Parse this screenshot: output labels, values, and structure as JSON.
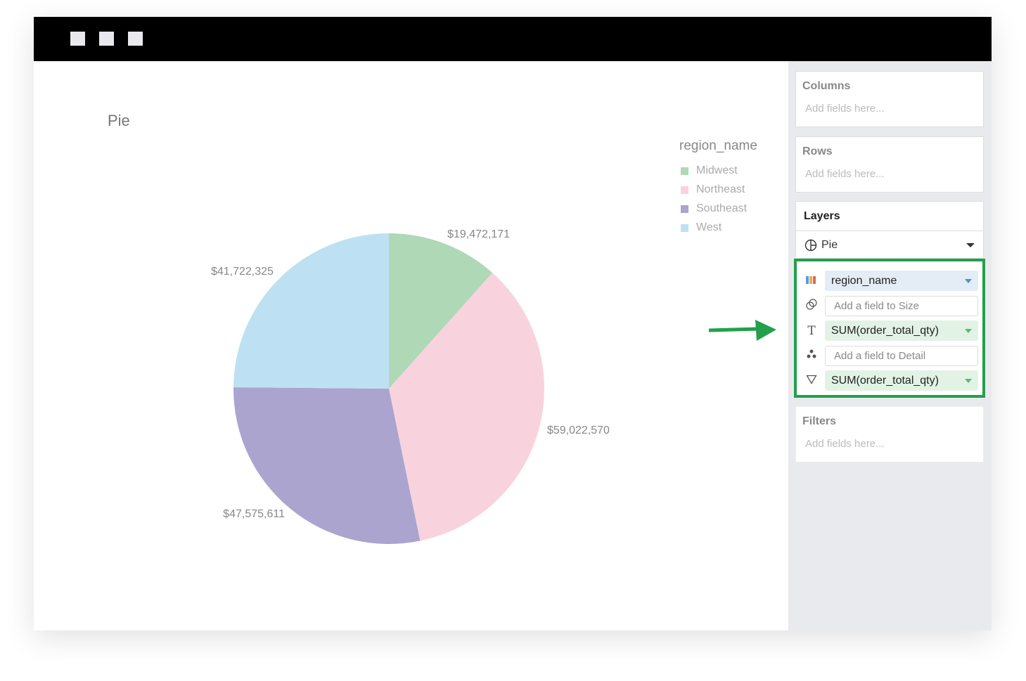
{
  "window": {
    "controls": [
      "square",
      "square",
      "square"
    ]
  },
  "chart_title": "Pie",
  "legend": {
    "title": "region_name",
    "items": [
      {
        "label": "Midwest",
        "color": "#afd8b6"
      },
      {
        "label": "Northeast",
        "color": "#f8d3de"
      },
      {
        "label": "Southeast",
        "color": "#aaa4cf"
      },
      {
        "label": "West",
        "color": "#bde1f2"
      }
    ]
  },
  "chart_data": {
    "type": "pie",
    "title": "Pie",
    "legend_title": "region_name",
    "legend_position": "right",
    "categories": [
      "Midwest",
      "Northeast",
      "Southeast",
      "West"
    ],
    "values": [
      19472171,
      59022570,
      47575611,
      41722325
    ],
    "labels": [
      "$19,472,171",
      "$59,022,570",
      "$47,575,611",
      "$41,722,325"
    ],
    "colors": [
      "#afd8b6",
      "#f8d3de",
      "#aaa4cf",
      "#bde1f2"
    ]
  },
  "sidebar": {
    "columns": {
      "title": "Columns",
      "placeholder": "Add fields here..."
    },
    "rows": {
      "title": "Rows",
      "placeholder": "Add fields here..."
    },
    "layers": {
      "title": "Layers",
      "type": "Pie"
    },
    "encodings": [
      {
        "icon": "color-icon",
        "value": "region_name",
        "state": "filled"
      },
      {
        "icon": "size-icon",
        "value": "Add a field to Size",
        "state": "empty"
      },
      {
        "icon": "text-icon",
        "value": "SUM(order_total_qty)",
        "state": "filled"
      },
      {
        "icon": "detail-icon",
        "value": "Add a field to Detail",
        "state": "empty"
      },
      {
        "icon": "tooltip-icon",
        "value": "SUM(order_total_qty)",
        "state": "filled"
      }
    ],
    "filters": {
      "title": "Filters",
      "placeholder": "Add fields here..."
    }
  },
  "highlight_color": "#22a04b"
}
